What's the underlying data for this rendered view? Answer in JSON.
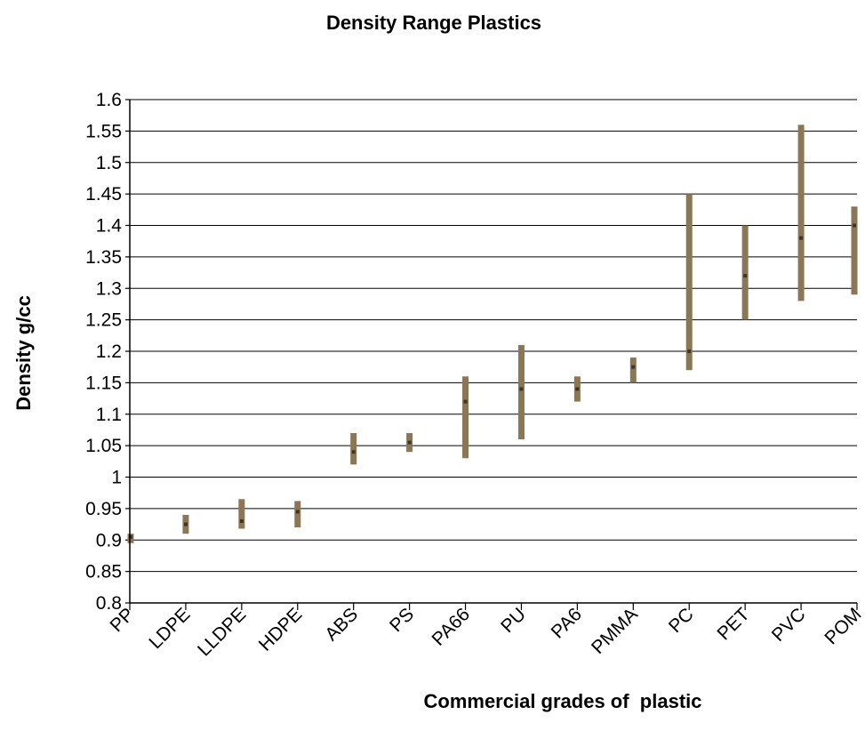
{
  "chart_data": {
    "type": "range-bar",
    "title": "Density Range Plastics",
    "xlabel": "Commercial grades of  plastic",
    "ylabel": "Density g/cc",
    "ylim": [
      0.8,
      1.6
    ],
    "y_ticks": [
      "0.8",
      "0.85",
      "0.9",
      "0.95",
      "1",
      "1.05",
      "1.1",
      "1.15",
      "1.2",
      "1.25",
      "1.3",
      "1.35",
      "1.4",
      "1.45",
      "1.5",
      "1.55",
      "1.6"
    ],
    "grid": true,
    "legend": "none",
    "colors": {
      "range_bar": "#8B7755",
      "marker": "#000000",
      "gridline": "#000000"
    },
    "categories": [
      "PP",
      "LDPE",
      "LLDPE",
      "HDPE",
      "ABS",
      "PS",
      "PA66",
      "PU",
      "PA6",
      "PMMA",
      "PC",
      "PET",
      "PVC",
      "POM"
    ],
    "series": [
      {
        "low": [
          0.895,
          0.91,
          0.918,
          0.92,
          1.02,
          1.04,
          1.03,
          1.06,
          1.12,
          1.15,
          1.17,
          1.25,
          1.28,
          1.29
        ]
      },
      {
        "high": [
          0.91,
          0.94,
          0.965,
          0.962,
          1.07,
          1.07,
          1.16,
          1.21,
          1.16,
          1.19,
          1.45,
          1.4,
          1.56,
          1.43
        ]
      },
      {
        "mid": [
          0.905,
          0.925,
          0.93,
          0.945,
          1.04,
          1.055,
          1.12,
          1.14,
          1.14,
          1.175,
          1.2,
          1.32,
          1.38,
          1.4
        ]
      }
    ]
  }
}
